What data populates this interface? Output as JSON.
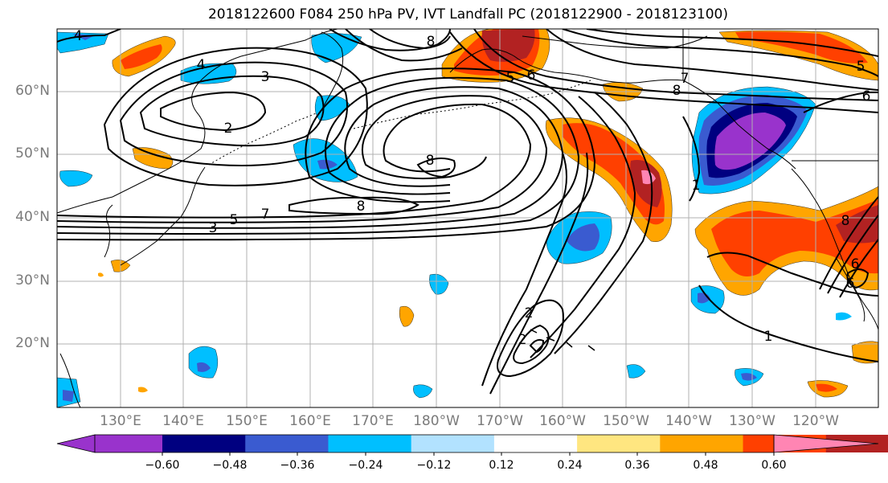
{
  "title": "2018122600 F084 250 hPa PV, IVT Landfall PC (2018122900 - 2018123100)",
  "latitude_labels": [
    "60°N",
    "50°N",
    "40°N",
    "30°N",
    "20°N"
  ],
  "longitude_labels": [
    "130°E",
    "140°E",
    "150°E",
    "160°E",
    "170°E",
    "180°W",
    "170°W",
    "160°W",
    "150°W",
    "140°W",
    "130°W",
    "120°W"
  ],
  "colorbar": {
    "tick_labels": [
      "-0.60",
      "-0.48",
      "-0.36",
      "-0.24",
      "-0.12",
      "0.12",
      "0.24",
      "0.36",
      "0.48",
      "0.60"
    ],
    "colors": [
      "#9933cc",
      "#000080",
      "#3a5bd0",
      "#00bfff",
      "#b2e2ff",
      "#ffffff",
      "#ffe680",
      "#ffa500",
      "#ff4000",
      "#b22222",
      "#ff85b3"
    ]
  },
  "contour_labels": [
    "4",
    "4",
    "8",
    "5",
    "6",
    "3",
    "2",
    "8",
    "7",
    "8",
    "8",
    "7",
    "6",
    "5",
    "3",
    "2",
    "2",
    "1",
    "1",
    "5",
    "6",
    "6",
    "8"
  ],
  "fill_palette": {
    "neg_light": "#b2e2ff",
    "neg_cyan": "#00bfff",
    "neg_blue": "#3a5bd0",
    "neg_navy": "#000080",
    "neg_purple": "#9933cc",
    "pos_yellow": "#ffe680",
    "pos_orange": "#ffa500",
    "pos_red": "#ff4000",
    "pos_dark": "#b22222",
    "pos_pink": "#ff85b3"
  }
}
